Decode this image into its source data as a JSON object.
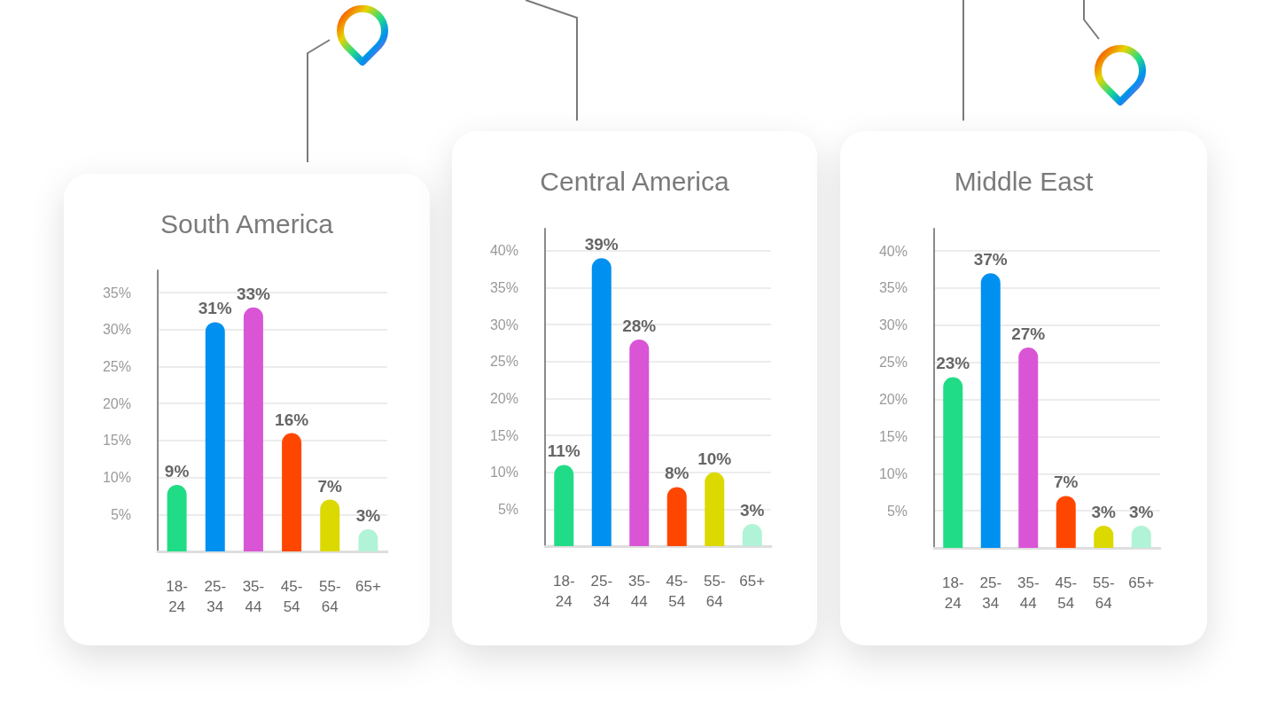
{
  "chart_data": [
    {
      "type": "bar",
      "title": "South America",
      "categories": [
        "18-24",
        "25-34",
        "35-44",
        "45-54",
        "55-64",
        "65+"
      ],
      "values": [
        9,
        31,
        33,
        16,
        7,
        3
      ],
      "colors": [
        "#21dc86",
        "#0090f0",
        "#d955d6",
        "#ff4600",
        "#dcd900",
        "#b1f3d6"
      ],
      "value_labels": [
        "9%",
        "31%",
        "33%",
        "16%",
        "7%",
        "3%"
      ],
      "ylim": [
        0,
        38
      ],
      "yticks": [
        {
          "value": 5,
          "label": "5%"
        },
        {
          "value": 10,
          "label": "10%"
        },
        {
          "value": 15,
          "label": "15%"
        },
        {
          "value": 20,
          "label": "20%"
        },
        {
          "value": 25,
          "label": "25%"
        },
        {
          "value": 30,
          "label": "30%"
        },
        {
          "value": 35,
          "label": "35%"
        }
      ],
      "grid": "y"
    },
    {
      "type": "bar",
      "title": "Central America",
      "categories": [
        "18-24",
        "25-34",
        "35-44",
        "45-54",
        "55-64",
        "65+"
      ],
      "values": [
        11,
        39,
        28,
        8,
        10,
        3
      ],
      "colors": [
        "#21dc86",
        "#0090f0",
        "#d955d6",
        "#ff4600",
        "#dcd900",
        "#b1f3d6"
      ],
      "value_labels": [
        "11%",
        "39%",
        "28%",
        "8%",
        "10%",
        "3%"
      ],
      "ylim": [
        0,
        43
      ],
      "yticks": [
        {
          "value": 5,
          "label": "5%"
        },
        {
          "value": 10,
          "label": "10%"
        },
        {
          "value": 15,
          "label": "15%"
        },
        {
          "value": 20,
          "label": "20%"
        },
        {
          "value": 25,
          "label": "25%"
        },
        {
          "value": 30,
          "label": "30%"
        },
        {
          "value": 35,
          "label": "35%"
        },
        {
          "value": 40,
          "label": "40%"
        }
      ],
      "grid": "y"
    },
    {
      "type": "bar",
      "title": "Middle East",
      "categories": [
        "18-24",
        "25-34",
        "35-44",
        "45-54",
        "55-64",
        "65+"
      ],
      "values": [
        23,
        37,
        27,
        7,
        3,
        3
      ],
      "colors": [
        "#21dc86",
        "#0090f0",
        "#d955d6",
        "#ff4600",
        "#dcd900",
        "#b1f3d6"
      ],
      "value_labels": [
        "23%",
        "37%",
        "27%",
        "7%",
        "3%",
        "3%"
      ],
      "ylim": [
        0,
        43
      ],
      "yticks": [
        {
          "value": 5,
          "label": "5%"
        },
        {
          "value": 10,
          "label": "10%"
        },
        {
          "value": 15,
          "label": "15%"
        },
        {
          "value": 20,
          "label": "20%"
        },
        {
          "value": 25,
          "label": "25%"
        },
        {
          "value": 30,
          "label": "30%"
        },
        {
          "value": 35,
          "label": "35%"
        },
        {
          "value": 40,
          "label": "40%"
        }
      ],
      "grid": "y"
    }
  ]
}
